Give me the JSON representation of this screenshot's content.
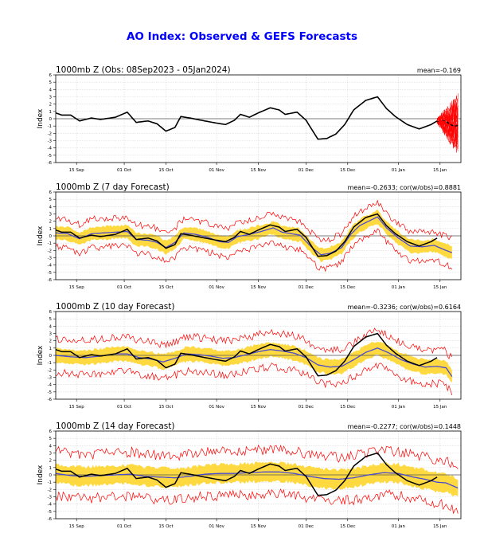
{
  "page_title": "AO Index: Observed & GEFS Forecasts",
  "colors": {
    "title": "#0000ff",
    "observed": "#000000",
    "ensemble_member": "#ff0000",
    "ensemble_mean": "#4b4bd0",
    "spread_band": "#ffd21f",
    "inner_band": "#ffe84a"
  },
  "chart_data": [
    {
      "type": "line",
      "id": "observed",
      "title": "1000mb Z (Obs: 08Sep2023 - 05Jan2024)",
      "stat": "mean=-0.169",
      "ylabel": "Index",
      "ylim": [
        -6,
        6
      ],
      "yticks": [
        "6",
        "5",
        "4",
        "3",
        "2",
        "1",
        "0",
        "-1",
        "-2",
        "-3",
        "-4",
        "-5",
        "-6"
      ],
      "xlim": [
        0,
        136
      ],
      "xticks": [
        {
          "label": "15 Sep",
          "x": 7
        },
        {
          "label": "01 Oct",
          "x": 23
        },
        {
          "label": "15 Oct",
          "x": 37
        },
        {
          "label": "01 Nov",
          "x": 54
        },
        {
          "label": "15 Nov",
          "x": 68
        },
        {
          "label": "01 Dec",
          "x": 84
        },
        {
          "label": "15 Dec",
          "x": 98
        },
        {
          "label": "01 Jan",
          "x": 115
        },
        {
          "label": "15 Jan",
          "x": 129
        }
      ],
      "observed_knots": [
        [
          0,
          0.8
        ],
        [
          2,
          0.5
        ],
        [
          5,
          0.5
        ],
        [
          8,
          -0.3
        ],
        [
          12,
          0.1
        ],
        [
          15,
          -0.1
        ],
        [
          20,
          0.2
        ],
        [
          24,
          0.9
        ],
        [
          27,
          -0.5
        ],
        [
          31,
          -0.3
        ],
        [
          34,
          -0.7
        ],
        [
          37,
          -1.7
        ],
        [
          40,
          -1.2
        ],
        [
          42,
          0.3
        ],
        [
          45,
          0.1
        ],
        [
          50,
          -0.3
        ],
        [
          54,
          -0.6
        ],
        [
          57,
          -0.8
        ],
        [
          60,
          -0.2
        ],
        [
          62,
          0.6
        ],
        [
          65,
          0.2
        ],
        [
          68,
          0.8
        ],
        [
          72,
          1.5
        ],
        [
          75,
          1.2
        ],
        [
          77,
          0.6
        ],
        [
          81,
          0.9
        ],
        [
          84,
          -0.2
        ],
        [
          86,
          -1.5
        ],
        [
          88,
          -2.8
        ],
        [
          91,
          -2.7
        ],
        [
          94,
          -2.1
        ],
        [
          97,
          -0.8
        ],
        [
          100,
          1.2
        ],
        [
          104,
          2.5
        ],
        [
          108,
          3.0
        ],
        [
          111,
          1.4
        ],
        [
          114,
          0.3
        ],
        [
          118,
          -0.8
        ],
        [
          122,
          -1.4
        ],
        [
          126,
          -0.8
        ],
        [
          128,
          -0.3
        ]
      ],
      "forecast_start": 128,
      "forecast_end": 135
    },
    {
      "type": "line",
      "id": "day7",
      "title": "1000mb Z (7 day Forecast)",
      "stat": "mean=-0.2633; cor(w/obs)=0.8881",
      "ylabel": "Index",
      "ylim": [
        -6,
        6
      ],
      "forecast_knots": [
        [
          0,
          0.4
        ],
        [
          4,
          0.3
        ],
        [
          8,
          -0.4
        ],
        [
          12,
          0.3
        ],
        [
          16,
          0.4
        ],
        [
          20,
          0.5
        ],
        [
          24,
          0.6
        ],
        [
          27,
          -0.5
        ],
        [
          31,
          -0.6
        ],
        [
          34,
          -0.9
        ],
        [
          37,
          -1.6
        ],
        [
          40,
          -0.9
        ],
        [
          43,
          0.4
        ],
        [
          47,
          0.2
        ],
        [
          51,
          -0.2
        ],
        [
          55,
          -0.8
        ],
        [
          58,
          -0.9
        ],
        [
          61,
          -0.1
        ],
        [
          65,
          0.2
        ],
        [
          69,
          0.6
        ],
        [
          73,
          1.1
        ],
        [
          76,
          0.5
        ],
        [
          79,
          0.3
        ],
        [
          82,
          0.1
        ],
        [
          86,
          -1.6
        ],
        [
          89,
          -2.6
        ],
        [
          92,
          -2.4
        ],
        [
          96,
          -1.6
        ],
        [
          99,
          0.2
        ],
        [
          102,
          1.4
        ],
        [
          106,
          2.2
        ],
        [
          108,
          2.6
        ],
        [
          111,
          1.1
        ],
        [
          115,
          -0.3
        ],
        [
          119,
          -1.4
        ],
        [
          123,
          -1.5
        ],
        [
          127,
          -1.3
        ],
        [
          131,
          -2.0
        ],
        [
          133,
          -2.3
        ]
      ],
      "spread": 0.9,
      "outer_spread": 2.0,
      "obs_end": 128,
      "obs_ref": "observed"
    },
    {
      "type": "line",
      "id": "day10",
      "title": "1000mb Z (10 day Forecast)",
      "stat": "mean=-0.3236; cor(w/obs)=0.6164",
      "ylabel": "Index",
      "ylim": [
        -6,
        6
      ],
      "forecast_knots": [
        [
          0,
          0.0
        ],
        [
          5,
          -0.2
        ],
        [
          10,
          -0.3
        ],
        [
          15,
          -0.1
        ],
        [
          20,
          0.2
        ],
        [
          24,
          0.2
        ],
        [
          28,
          -0.3
        ],
        [
          32,
          -0.5
        ],
        [
          36,
          -0.9
        ],
        [
          40,
          -0.4
        ],
        [
          44,
          0.2
        ],
        [
          48,
          0.1
        ],
        [
          52,
          -0.1
        ],
        [
          56,
          -0.4
        ],
        [
          60,
          -0.3
        ],
        [
          64,
          0.1
        ],
        [
          68,
          0.5
        ],
        [
          72,
          0.8
        ],
        [
          76,
          0.6
        ],
        [
          80,
          0.3
        ],
        [
          84,
          -0.3
        ],
        [
          88,
          -1.3
        ],
        [
          92,
          -1.6
        ],
        [
          96,
          -1.5
        ],
        [
          100,
          -0.6
        ],
        [
          104,
          0.4
        ],
        [
          108,
          1.0
        ],
        [
          112,
          0.3
        ],
        [
          116,
          -0.6
        ],
        [
          120,
          -1.2
        ],
        [
          124,
          -1.6
        ],
        [
          128,
          -1.5
        ],
        [
          131,
          -1.7
        ],
        [
          133,
          -2.9
        ]
      ],
      "spread": 1.0,
      "outer_spread": 2.4,
      "obs_end": 128,
      "obs_ref": "observed"
    },
    {
      "type": "line",
      "id": "day14",
      "title": "1000mb Z (14 day Forecast)",
      "stat": "mean=-0.2277; cor(w/obs)=0.1448",
      "ylabel": "Index",
      "ylim": [
        -6,
        6
      ],
      "forecast_knots": [
        [
          0,
          0.2
        ],
        [
          5,
          -0.1
        ],
        [
          10,
          -0.2
        ],
        [
          15,
          -0.1
        ],
        [
          20,
          0.0
        ],
        [
          25,
          0.1
        ],
        [
          30,
          -0.2
        ],
        [
          35,
          -0.3
        ],
        [
          40,
          -0.4
        ],
        [
          45,
          -0.2
        ],
        [
          50,
          0.1
        ],
        [
          55,
          0.2
        ],
        [
          60,
          0.2
        ],
        [
          65,
          0.3
        ],
        [
          70,
          0.4
        ],
        [
          75,
          0.4
        ],
        [
          80,
          0.2
        ],
        [
          85,
          -0.2
        ],
        [
          90,
          -0.5
        ],
        [
          95,
          -0.6
        ],
        [
          100,
          -0.4
        ],
        [
          105,
          0.0
        ],
        [
          110,
          0.3
        ],
        [
          115,
          0.2
        ],
        [
          120,
          -0.3
        ],
        [
          124,
          -0.6
        ],
        [
          128,
          -1.0
        ],
        [
          131,
          -1.1
        ],
        [
          135,
          -1.8
        ]
      ],
      "spread": 1.3,
      "outer_spread": 3.1,
      "obs_end": 128,
      "obs_ref": "observed"
    }
  ]
}
